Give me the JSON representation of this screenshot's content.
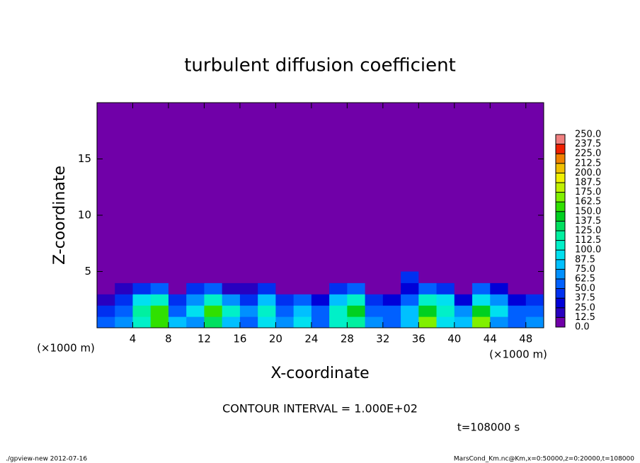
{
  "chart_data": {
    "type": "heatmap",
    "title": "turbulent diffusion coefficient",
    "x_label": "X-coordinate",
    "y_label": "Z-coordinate",
    "x_unit": "(×1000 m)",
    "y_unit": "(×1000 m)",
    "xlim": [
      0,
      50
    ],
    "ylim": [
      0,
      20
    ],
    "xticks": [
      4,
      8,
      12,
      16,
      20,
      24,
      28,
      32,
      36,
      40,
      44,
      48
    ],
    "yticks": [
      5,
      10,
      15
    ],
    "x": [
      0,
      2,
      4,
      6,
      8,
      10,
      12,
      14,
      16,
      18,
      20,
      22,
      24,
      26,
      28,
      30,
      32,
      34,
      36,
      38,
      40,
      42,
      44,
      46,
      48,
      50
    ],
    "z": [
      0,
      1,
      2,
      3,
      4,
      5
    ],
    "values": [
      [
        60,
        70,
        110,
        150,
        80,
        70,
        130,
        80,
        50,
        90,
        70,
        90,
        60,
        110,
        120,
        70,
        60,
        80,
        170,
        90,
        80,
        170,
        70,
        60,
        70
      ],
      [
        40,
        60,
        120,
        160,
        60,
        90,
        150,
        100,
        70,
        110,
        60,
        80,
        60,
        100,
        140,
        60,
        50,
        80,
        140,
        110,
        70,
        140,
        90,
        50,
        60
      ],
      [
        20,
        40,
        90,
        110,
        40,
        70,
        100,
        70,
        40,
        80,
        40,
        50,
        30,
        80,
        100,
        40,
        30,
        60,
        100,
        90,
        30,
        90,
        70,
        30,
        40
      ],
      [
        10,
        20,
        40,
        50,
        10,
        40,
        60,
        20,
        20,
        40,
        10,
        10,
        10,
        40,
        50,
        10,
        0,
        30,
        50,
        40,
        10,
        50,
        30,
        10,
        10
      ],
      [
        0,
        0,
        0,
        0,
        0,
        0,
        0,
        0,
        0,
        0,
        0,
        0,
        0,
        0,
        0,
        0,
        0,
        40,
        0,
        0,
        0,
        0,
        0,
        0,
        0
      ]
    ],
    "colorbar_ticks": [
      {
        "value": 0,
        "label": "0.0"
      },
      12.5,
      {
        "value": 25,
        "label": "25.0"
      },
      37.5,
      {
        "value": 50,
        "label": "50.0"
      },
      62.5,
      {
        "value": 75,
        "label": "75.0"
      },
      87.5,
      {
        "value": 100,
        "label": "100.0"
      },
      112.5,
      {
        "value": 125,
        "label": "125.0"
      },
      137.5,
      {
        "value": 150,
        "label": "150.0"
      },
      162.5,
      {
        "value": 175,
        "label": "175.0"
      },
      187.5,
      {
        "value": 200,
        "label": "200.0"
      },
      212.5,
      {
        "value": 225,
        "label": "225.0"
      },
      237.5,
      {
        "value": 250,
        "label": "250.0"
      }
    ],
    "colors": [
      "#7000a8",
      "#2800c0",
      "#0000d8",
      "#0030f0",
      "#0060ff",
      "#0090ff",
      "#00c0ff",
      "#00e0f0",
      "#00f0c8",
      "#00f0a0",
      "#00e060",
      "#00d020",
      "#30e000",
      "#80f000",
      "#c0f000",
      "#f0f000",
      "#f0c000",
      "#f08000",
      "#f02000",
      "#f08080"
    ],
    "contour_note": "CONTOUR INTERVAL = 1.000E+02",
    "time_note": "t=108000 s",
    "footer_left": "./gpview-new  2012-07-16",
    "footer_right": "MarsCond_Km.nc@Km,x=0:50000,z=0:20000,t=108000"
  }
}
